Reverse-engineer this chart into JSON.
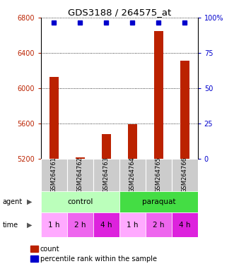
{
  "title": "GDS3188 / 264575_at",
  "samples": [
    "GSM264761",
    "GSM264762",
    "GSM264763",
    "GSM264764",
    "GSM264765",
    "GSM264766"
  ],
  "counts": [
    6130,
    5210,
    5480,
    5590,
    6650,
    6310
  ],
  "percentile_ranks": [
    100,
    100,
    100,
    100,
    100,
    100
  ],
  "ylim_left": [
    5200,
    6800
  ],
  "ylim_right": [
    0,
    100
  ],
  "yticks_left": [
    5200,
    5600,
    6000,
    6400,
    6800
  ],
  "yticks_right": [
    0,
    25,
    50,
    75,
    100
  ],
  "bar_color": "#bb2200",
  "percentile_color": "#0000cc",
  "bar_width": 0.35,
  "agent_colors": [
    "#bbffbb",
    "#44dd44"
  ],
  "time_colors": [
    "#ffaaff",
    "#ee66ee",
    "#dd22dd",
    "#ffaaff",
    "#ee66ee",
    "#dd22dd"
  ],
  "time_labels": [
    "1 h",
    "2 h",
    "4 h",
    "1 h",
    "2 h",
    "4 h"
  ],
  "sample_bg_color": "#cccccc",
  "legend_count_color": "#bb2200",
  "legend_percentile_color": "#0000cc",
  "grid_color": "#000000"
}
